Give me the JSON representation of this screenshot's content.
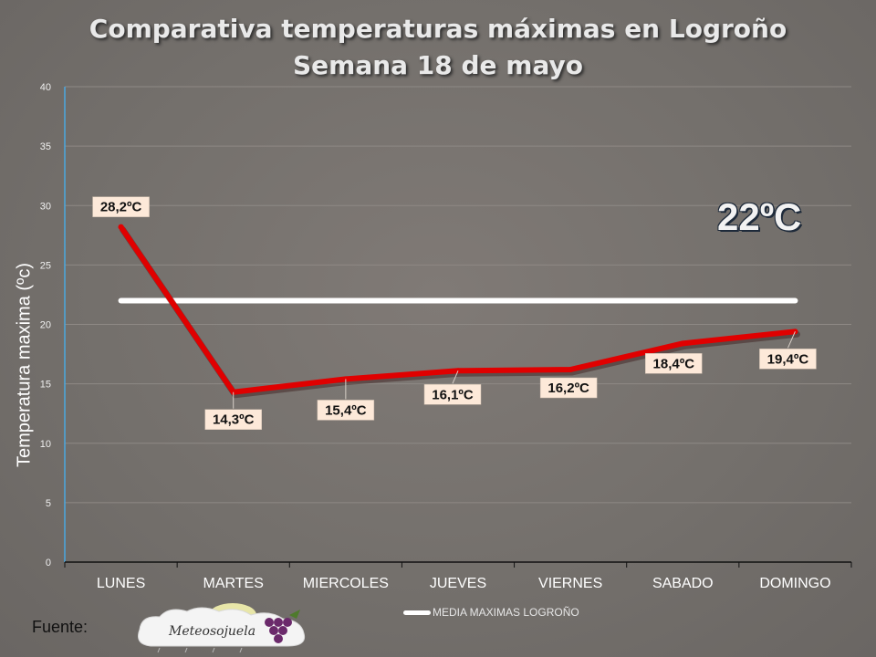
{
  "title_line1": "Comparativa temperaturas máximas en Logroño",
  "title_line2": "Semana 18 de mayo",
  "ylabel": "Temperatura maxima  (ºc)",
  "highlight": "22ºC",
  "legend_label": "MEDIA MAXIMAS LOGROÑO",
  "source_label": "Fuente:",
  "logo_text": "Meteosojuela",
  "colors": {
    "series": "#e00000",
    "average": "#ffffff",
    "grid": "#8e8985",
    "axis": "#4aa8e0",
    "label_bg": "#fde9d9"
  },
  "chart_data": {
    "type": "line",
    "categories": [
      "LUNES",
      "MARTES",
      "MIERCOLES",
      "JUEVES",
      "VIERNES",
      "SABADO",
      "DOMINGO"
    ],
    "series": [
      {
        "values": [
          28.2,
          14.3,
          15.4,
          16.1,
          16.2,
          18.4,
          19.4
        ],
        "labels": [
          "28,2ºC",
          "14,3ºC",
          "15,4ºC",
          "16,1ºC",
          "16,2ºC",
          "18,4ºC",
          "19,4ºC"
        ]
      },
      {
        "name": "MEDIA MAXIMAS LOGROÑO",
        "values": [
          22,
          22,
          22,
          22,
          22,
          22,
          22
        ]
      }
    ],
    "yticks": [
      0,
      5,
      10,
      15,
      20,
      25,
      30,
      35,
      40
    ],
    "ylim": [
      0,
      40
    ],
    "grid": true,
    "legend": "bottom"
  }
}
